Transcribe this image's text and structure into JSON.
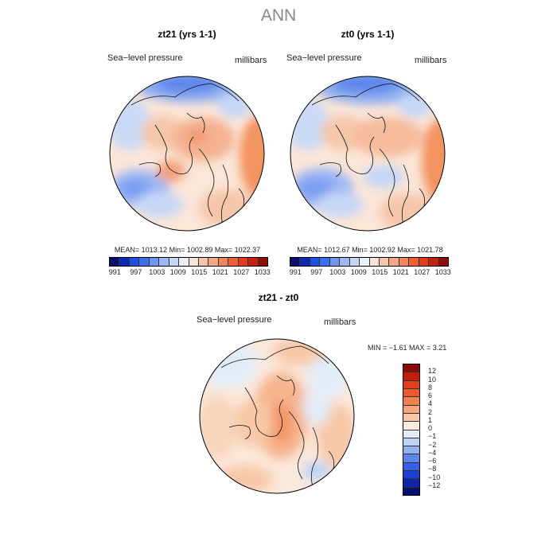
{
  "title": "ANN",
  "panels": [
    {
      "id": "zt21",
      "title": "zt21 (yrs 1-1)",
      "left_label": "Sea−level pressure",
      "right_label": "millibars",
      "stats": "MEAN= 1013.12   Min= 1002.89   Max= 1022.37"
    },
    {
      "id": "zt0",
      "title": "zt0 (yrs 1-1)",
      "left_label": "Sea−level pressure",
      "right_label": "millibars",
      "stats": "MEAN= 1012.67   Min= 1002.92   Max= 1021.78"
    },
    {
      "id": "diff",
      "title": "zt21 - zt0",
      "left_label": "Sea−level pressure",
      "right_label": "millibars",
      "stats": "MIN =   −1.61  MAX =     3.21"
    }
  ],
  "abs_colorbar": {
    "tick_labels": [
      "991",
      "997",
      "1003",
      "1009",
      "1015",
      "1021",
      "1027",
      "1033"
    ],
    "colors": [
      "#08106b",
      "#0c2bb5",
      "#1f4fe0",
      "#3c6ff0",
      "#6f95f2",
      "#9db7f4",
      "#c6d7f6",
      "#e8eff9",
      "#f9e4d7",
      "#f6c6ab",
      "#f4a784",
      "#f3855c",
      "#ef6035",
      "#e23d1a",
      "#c3230c",
      "#8c0e06"
    ]
  },
  "diff_colorbar": {
    "tick_labels": [
      "12",
      "10",
      "8",
      "6",
      "4",
      "2",
      "1",
      "0",
      "−1",
      "−2",
      "−4",
      "−6",
      "−8",
      "−10",
      "−12"
    ],
    "colors": [
      "#8a0b04",
      "#c11f08",
      "#e0401a",
      "#ef5a2d",
      "#f3814e",
      "#f6a67a",
      "#f8c8a8",
      "#fbe9dc",
      "#e2ecf9",
      "#bed3f5",
      "#91b1f1",
      "#5e85ec",
      "#3660e6",
      "#1b3fd4",
      "#0d25a6",
      "#07106e"
    ]
  }
}
